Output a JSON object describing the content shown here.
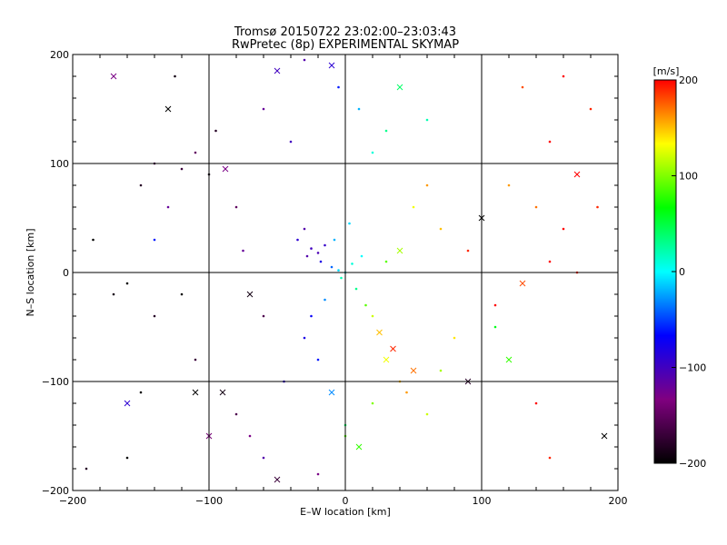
{
  "chart_data": {
    "type": "scatter",
    "title": "Tromsø 20150722 23:02:00–23:03:43",
    "subtitle": "RwPretec (8p) EXPERIMENTAL SKYMAP",
    "xlabel": "E–W location [km]",
    "ylabel": "N–S location [km]",
    "xlim": [
      -200,
      200
    ],
    "ylim": [
      -200,
      200
    ],
    "x_ticks": [
      -200,
      -100,
      0,
      100,
      200
    ],
    "y_ticks": [
      -200,
      -100,
      0,
      100,
      200
    ],
    "x_tick_labels": [
      "−200",
      "−100",
      "0",
      "100",
      "200"
    ],
    "y_tick_labels": [
      "−200",
      "−100",
      "0",
      "100",
      "200"
    ],
    "grid": "major lines at ±100 km and 0",
    "markers": [
      "small dot",
      "cross (×)"
    ],
    "colorbar": {
      "label": "[m/s]",
      "range": [
        -200,
        200
      ],
      "ticks": [
        200,
        100,
        0,
        -100,
        -200
      ],
      "tick_labels": [
        "200",
        "100",
        "0",
        "−100",
        "−200"
      ],
      "colormap": [
        "#000000",
        "#800080",
        "#0000ff",
        "#00ffff",
        "#00ff00",
        "#ffff00",
        "#ff0000"
      ]
    },
    "series": [
      {
        "values": [
          [
            -185,
            30,
            -200,
            "dot"
          ],
          [
            -170,
            -20,
            -190,
            "dot"
          ],
          [
            -150,
            80,
            -180,
            "dot"
          ],
          [
            -140,
            100,
            -160,
            "dot"
          ],
          [
            -130,
            150,
            -200,
            "cross"
          ],
          [
            -120,
            95,
            -170,
            "dot"
          ],
          [
            -110,
            110,
            -150,
            "dot"
          ],
          [
            -100,
            90,
            -190,
            "dot"
          ],
          [
            -95,
            130,
            -180,
            "dot"
          ],
          [
            -88,
            95,
            -130,
            "cross"
          ],
          [
            -80,
            60,
            -150,
            "dot"
          ],
          [
            -75,
            20,
            -120,
            "dot"
          ],
          [
            -70,
            -20,
            -190,
            "cross"
          ],
          [
            -60,
            -40,
            -160,
            "dot"
          ],
          [
            -120,
            -20,
            -200,
            "dot"
          ],
          [
            -140,
            -40,
            -180,
            "dot"
          ],
          [
            -160,
            -10,
            -200,
            "dot"
          ],
          [
            -110,
            -80,
            -170,
            "dot"
          ],
          [
            -90,
            -110,
            -190,
            "cross"
          ],
          [
            -80,
            -130,
            -160,
            "dot"
          ],
          [
            -70,
            -150,
            -130,
            "dot"
          ],
          [
            -60,
            -170,
            -110,
            "dot"
          ],
          [
            -100,
            -150,
            -140,
            "cross"
          ],
          [
            -150,
            -110,
            -200,
            "dot"
          ],
          [
            -190,
            -180,
            -180,
            "dot"
          ],
          [
            -160,
            -170,
            -200,
            "dot"
          ],
          [
            -50,
            185,
            -100,
            "cross"
          ],
          [
            -30,
            195,
            -110,
            "dot"
          ],
          [
            -10,
            190,
            -90,
            "cross"
          ],
          [
            -60,
            150,
            -120,
            "dot"
          ],
          [
            -40,
            120,
            -100,
            "dot"
          ],
          [
            -30,
            40,
            -110,
            "dot"
          ],
          [
            -25,
            22,
            -100,
            "dot"
          ],
          [
            -20,
            18,
            -105,
            "dot"
          ],
          [
            -15,
            25,
            -95,
            "dot"
          ],
          [
            -28,
            15,
            -110,
            "dot"
          ],
          [
            -35,
            30,
            -90,
            "dot"
          ],
          [
            -18,
            10,
            -80,
            "dot"
          ],
          [
            -10,
            5,
            -40,
            "dot"
          ],
          [
            -5,
            2,
            -10,
            "dot"
          ],
          [
            0,
            0,
            0,
            "dot"
          ],
          [
            5,
            8,
            10,
            "dot"
          ],
          [
            -3,
            -5,
            20,
            "dot"
          ],
          [
            8,
            -15,
            30,
            "dot"
          ],
          [
            12,
            15,
            0,
            "dot"
          ],
          [
            -8,
            30,
            -20,
            "dot"
          ],
          [
            3,
            45,
            -10,
            "dot"
          ],
          [
            -15,
            -25,
            -30,
            "dot"
          ],
          [
            -25,
            -40,
            -70,
            "dot"
          ],
          [
            -30,
            -60,
            -80,
            "dot"
          ],
          [
            -20,
            -80,
            -60,
            "dot"
          ],
          [
            -45,
            -100,
            -90,
            "dot"
          ],
          [
            -10,
            -110,
            -30,
            "cross"
          ],
          [
            0,
            -140,
            40,
            "dot"
          ],
          [
            10,
            -160,
            80,
            "cross"
          ],
          [
            20,
            -120,
            100,
            "dot"
          ],
          [
            30,
            -80,
            130,
            "cross"
          ],
          [
            40,
            -100,
            150,
            "dot"
          ],
          [
            50,
            -90,
            170,
            "cross"
          ],
          [
            45,
            -110,
            160,
            "dot"
          ],
          [
            60,
            -130,
            120,
            "dot"
          ],
          [
            35,
            -70,
            190,
            "cross"
          ],
          [
            20,
            -40,
            120,
            "dot"
          ],
          [
            25,
            -55,
            150,
            "cross"
          ],
          [
            15,
            -30,
            90,
            "dot"
          ],
          [
            70,
            -90,
            110,
            "dot"
          ],
          [
            80,
            -60,
            140,
            "dot"
          ],
          [
            90,
            -100,
            -180,
            "cross"
          ],
          [
            110,
            -30,
            200,
            "dot"
          ],
          [
            130,
            -10,
            180,
            "cross"
          ],
          [
            150,
            10,
            200,
            "dot"
          ],
          [
            170,
            0,
            190,
            "dot"
          ],
          [
            160,
            40,
            200,
            "dot"
          ],
          [
            140,
            60,
            170,
            "dot"
          ],
          [
            120,
            80,
            160,
            "dot"
          ],
          [
            100,
            50,
            -200,
            "cross"
          ],
          [
            90,
            20,
            190,
            "dot"
          ],
          [
            70,
            40,
            150,
            "dot"
          ],
          [
            60,
            80,
            160,
            "dot"
          ],
          [
            50,
            60,
            130,
            "dot"
          ],
          [
            40,
            20,
            110,
            "cross"
          ],
          [
            30,
            10,
            90,
            "dot"
          ],
          [
            150,
            120,
            200,
            "dot"
          ],
          [
            180,
            150,
            190,
            "dot"
          ],
          [
            160,
            180,
            200,
            "dot"
          ],
          [
            130,
            170,
            180,
            "dot"
          ],
          [
            170,
            90,
            200,
            "cross"
          ],
          [
            185,
            60,
            190,
            "dot"
          ],
          [
            190,
            -150,
            -200,
            "cross"
          ],
          [
            120,
            -80,
            80,
            "cross"
          ],
          [
            140,
            -120,
            200,
            "dot"
          ],
          [
            150,
            -170,
            190,
            "dot"
          ],
          [
            110,
            -50,
            60,
            "dot"
          ],
          [
            40,
            170,
            40,
            "cross"
          ],
          [
            60,
            140,
            20,
            "dot"
          ],
          [
            30,
            130,
            30,
            "dot"
          ],
          [
            20,
            110,
            10,
            "dot"
          ],
          [
            10,
            150,
            -20,
            "dot"
          ],
          [
            -5,
            170,
            -60,
            "dot"
          ],
          [
            -50,
            -190,
            -170,
            "cross"
          ],
          [
            -20,
            -185,
            -130,
            "dot"
          ],
          [
            0,
            -150,
            90,
            "dot"
          ],
          [
            -170,
            180,
            -130,
            "cross"
          ],
          [
            -125,
            180,
            -190,
            "dot"
          ],
          [
            -160,
            -120,
            -90,
            "cross"
          ],
          [
            -110,
            -110,
            -200,
            "cross"
          ],
          [
            -130,
            60,
            -120,
            "dot"
          ],
          [
            -140,
            30,
            -60,
            "dot"
          ]
        ]
      }
    ]
  }
}
